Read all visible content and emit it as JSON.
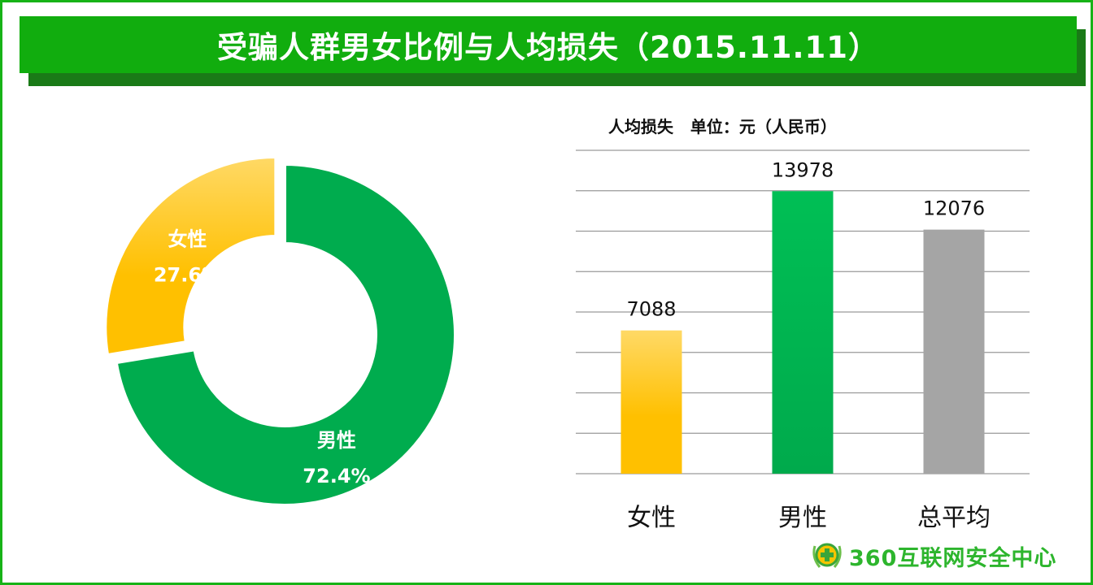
{
  "title": "受骗人群男女比例与人均损失（2015.11.11）",
  "logo_text": "360互联网安全中心",
  "chart_data": [
    {
      "type": "pie",
      "donut": true,
      "slices": [
        {
          "label": "男性",
          "value": 72.4,
          "value_label": "72.4%",
          "color": "#00ac4e"
        },
        {
          "label": "女性",
          "value": 27.6,
          "value_label": "27.6%",
          "color": "#ffc000",
          "exploded": true
        }
      ]
    },
    {
      "type": "bar",
      "title": "人均损失   单位：元（人民币）",
      "categories": [
        "女性",
        "男性",
        "总平均"
      ],
      "values": [
        7088,
        13978,
        12076
      ],
      "value_labels": [
        "7088",
        "13978",
        "12076"
      ],
      "colors": [
        "#ffc000",
        "#00b050",
        "#a5a5a5"
      ],
      "ylim": [
        0,
        16000
      ],
      "grid": true,
      "gridline_step": 2000
    }
  ],
  "colors": {
    "border": "#17b317",
    "banner": "#11ad0e",
    "banner_shadow": "#1a7a17"
  }
}
